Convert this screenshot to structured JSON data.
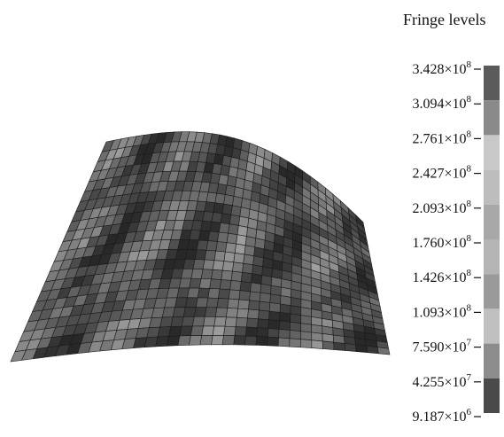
{
  "legend": {
    "title": "Fringe levels",
    "levels": [
      {
        "mantissa": "3.428",
        "base": "×10",
        "exponent": "8"
      },
      {
        "mantissa": "3.094",
        "base": "×10",
        "exponent": "8"
      },
      {
        "mantissa": "2.761",
        "base": "×10",
        "exponent": "8"
      },
      {
        "mantissa": "2.427",
        "base": "×10",
        "exponent": "8"
      },
      {
        "mantissa": "2.093",
        "base": "×10",
        "exponent": "8"
      },
      {
        "mantissa": "1.760",
        "base": "×10",
        "exponent": "8"
      },
      {
        "mantissa": "1.426",
        "base": "×10",
        "exponent": "8"
      },
      {
        "mantissa": "1.093",
        "base": "×10",
        "exponent": "8"
      },
      {
        "mantissa": "7.590",
        "base": "×10",
        "exponent": "7"
      },
      {
        "mantissa": "4.255",
        "base": "×10",
        "exponent": "7"
      },
      {
        "mantissa": "9.187",
        "base": "×10",
        "exponent": "6"
      }
    ]
  }
}
